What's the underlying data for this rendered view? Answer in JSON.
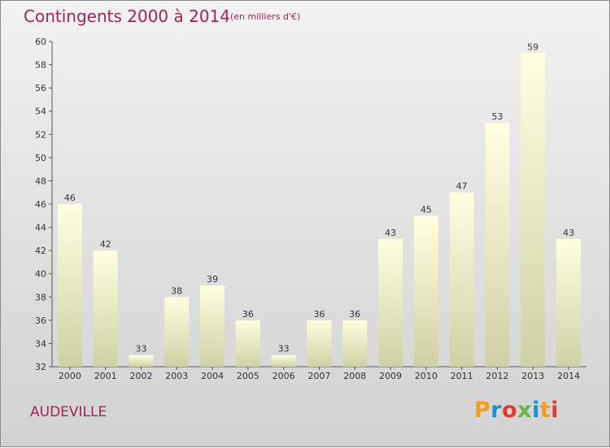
{
  "header": {
    "title": "Contingents 2000 à 2014",
    "subtitle": "(en milliers d'€)"
  },
  "commune": "AUDEVILLE",
  "logo": {
    "text": "Proxiti",
    "letters": [
      "P",
      "r",
      "o",
      "x",
      "i",
      "t",
      "i"
    ],
    "colors": [
      "#f39c1e",
      "#1f8ed6",
      "#e03a2b",
      "#6cb33f",
      "#1f8ed6",
      "#f39c1e",
      "#e03a2b"
    ]
  },
  "colors": {
    "bar_top": "#ffffe0",
    "bar_bottom": "#d0d0a6",
    "accent": "#a3235a",
    "text": "#333333"
  },
  "chart_data": {
    "type": "bar",
    "title": "Contingents 2000 à 2014",
    "subtitle": "(en milliers d'€)",
    "categories": [
      "2000",
      "2001",
      "2002",
      "2003",
      "2004",
      "2005",
      "2006",
      "2007",
      "2008",
      "2009",
      "2010",
      "2011",
      "2012",
      "2013",
      "2014"
    ],
    "values": [
      46,
      42,
      33,
      38,
      39,
      36,
      33,
      36,
      36,
      43,
      45,
      47,
      53,
      59,
      43
    ],
    "ylim": [
      32,
      60
    ],
    "yticks": [
      32,
      34,
      36,
      38,
      40,
      42,
      44,
      46,
      48,
      50,
      52,
      54,
      56,
      58,
      60
    ],
    "grid": false,
    "data_labels": true
  }
}
